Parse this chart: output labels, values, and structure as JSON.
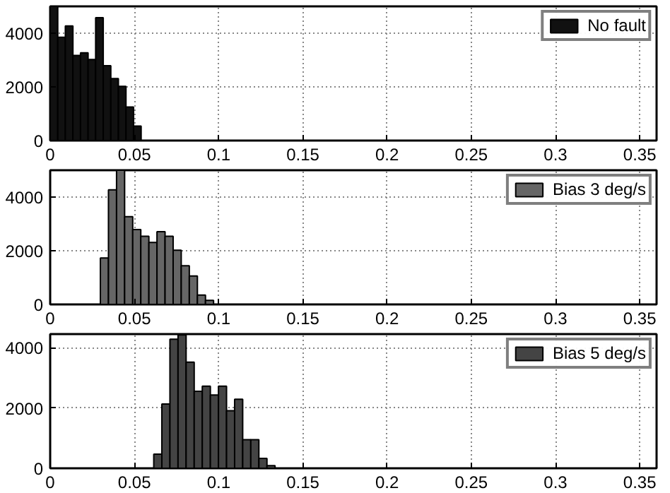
{
  "chart_data": [
    {
      "type": "histogram",
      "bins": [
        0,
        0.0045,
        0.009,
        0.0135,
        0.018,
        0.0225,
        0.027,
        0.0315,
        0.036,
        0.0405,
        0.045,
        0.0495,
        0.054
      ],
      "series": [
        {
          "name": "No fault",
          "color": "#111111",
          "values": [
            5000,
            3850,
            4270,
            3170,
            3270,
            3020,
            4580,
            2790,
            2310,
            2020,
            1250,
            540
          ]
        }
      ],
      "xlim": [
        0,
        0.36
      ],
      "xticks": [
        0,
        0.05,
        0.1,
        0.15,
        0.2,
        0.25,
        0.3,
        0.35
      ],
      "ylim": [
        0,
        5000
      ],
      "yticks": [
        0,
        2000,
        4000
      ],
      "grid": true,
      "legend": "top right"
    },
    {
      "type": "histogram",
      "bins": [
        0.0298,
        0.0346,
        0.0394,
        0.0442,
        0.049,
        0.0538,
        0.0586,
        0.0634,
        0.0682,
        0.073,
        0.0778,
        0.0826,
        0.0874,
        0.0922,
        0.097
      ],
      "series": [
        {
          "name": "Bias 3 deg/s",
          "color": "#666666",
          "values": [
            1730,
            4270,
            5000,
            3270,
            2790,
            2540,
            2310,
            2710,
            2540,
            2020,
            1440,
            1060,
            350,
            150
          ]
        }
      ],
      "xlim": [
        0,
        0.36
      ],
      "xticks": [
        0,
        0.05,
        0.1,
        0.15,
        0.2,
        0.25,
        0.3,
        0.35
      ],
      "ylim": [
        0,
        5000
      ],
      "yticks": [
        0,
        2000,
        4000
      ],
      "grid": true,
      "legend": "top right"
    },
    {
      "type": "histogram",
      "bins": [
        0.0615,
        0.0663,
        0.0711,
        0.0759,
        0.0807,
        0.0855,
        0.0903,
        0.0951,
        0.0999,
        0.1047,
        0.1095,
        0.1143,
        0.1191,
        0.1239,
        0.1287,
        0.1335
      ],
      "series": [
        {
          "name": "Bias 5 deg/s",
          "color": "#444444",
          "values": [
            470,
            2130,
            4280,
            4420,
            3520,
            2550,
            2720,
            2430,
            2720,
            1910,
            2290,
            950,
            950,
            330,
            90
          ]
        }
      ],
      "xlim": [
        0,
        0.36
      ],
      "xticks": [
        0,
        0.05,
        0.1,
        0.15,
        0.2,
        0.25,
        0.3,
        0.35
      ],
      "ylim": [
        0,
        4450
      ],
      "yticks": [
        0,
        2000,
        4000
      ],
      "grid": true,
      "legend": "top right"
    }
  ]
}
